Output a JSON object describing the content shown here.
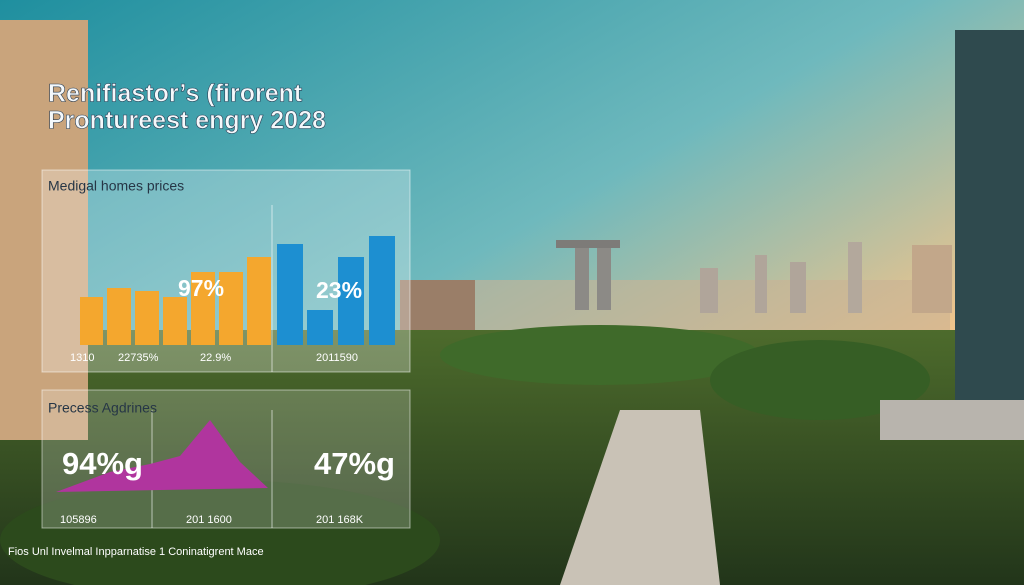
{
  "header": {
    "title_lines": [
      "Renifiastor’s (firorent",
      "Prontureest engry 2028"
    ]
  },
  "panels": [
    {
      "label": "Medigal homes prices",
      "annotations": [
        "97%",
        "23%"
      ],
      "axis_labels": [
        "1310",
        "22735%",
        "22.9%",
        "2011590"
      ]
    },
    {
      "label": "Precess Agdrines",
      "annotations": [
        "94%g",
        "47%g"
      ],
      "axis_labels": [
        "105896",
        "201 1600",
        "201 168K"
      ]
    }
  ],
  "footer": {
    "text": "Fios Unl Invelmal Inpparnatise 1 Coninatigrent Mace"
  }
}
